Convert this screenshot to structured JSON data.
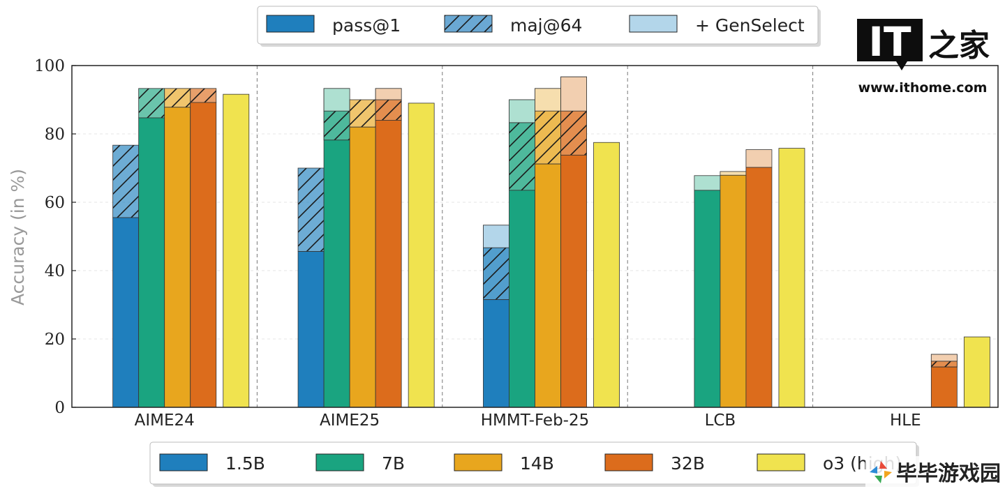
{
  "chart_data": {
    "type": "bar",
    "ylabel": "Accuracy (in %)",
    "ylim": [
      0,
      100
    ],
    "yticks": [
      0,
      20,
      40,
      60,
      80,
      100
    ],
    "grid": true,
    "categories": [
      "AIME24",
      "AIME25",
      "HMMT-Feb-25",
      "LCB",
      "HLE"
    ],
    "stack_legend": {
      "position": "top",
      "items": [
        {
          "label": "pass@1",
          "style": "solid"
        },
        {
          "label": "maj@64",
          "style": "hatched"
        },
        {
          "label": "+ GenSelect",
          "style": "light"
        }
      ]
    },
    "model_legend": {
      "position": "bottom",
      "items": [
        {
          "label": "1.5B",
          "color": "#1f7fbd"
        },
        {
          "label": "7B",
          "color": "#1aa480"
        },
        {
          "label": "14B",
          "color": "#e8a61e"
        },
        {
          "label": "32B",
          "color": "#dc6c1c"
        },
        {
          "label": "o3 (high)",
          "color": "#f0e34f"
        }
      ]
    },
    "series": [
      {
        "name": "1.5B",
        "color": "#1f7fbd",
        "light": "#b3d6ea",
        "pass1": [
          55.5,
          45.6,
          31.5,
          null,
          null
        ],
        "maj64": [
          76.7,
          70.0,
          46.7,
          null,
          null
        ],
        "genselect": [
          null,
          null,
          53.3,
          null,
          null
        ]
      },
      {
        "name": "7B",
        "color": "#1aa480",
        "light": "#aee0d1",
        "pass1": [
          84.7,
          78.2,
          63.5,
          63.5,
          null
        ],
        "maj64": [
          93.3,
          86.7,
          83.3,
          null,
          null
        ],
        "genselect": [
          null,
          93.3,
          90.0,
          67.8,
          null
        ]
      },
      {
        "name": "14B",
        "color": "#e8a61e",
        "light": "#f6deae",
        "pass1": [
          87.8,
          82.0,
          71.2,
          67.9,
          null
        ],
        "maj64": [
          93.3,
          90.0,
          86.7,
          null,
          null
        ],
        "genselect": [
          null,
          null,
          93.3,
          69.0,
          null
        ]
      },
      {
        "name": "32B",
        "color": "#dc6c1c",
        "light": "#f2cfb0",
        "pass1": [
          89.2,
          84.0,
          73.8,
          70.2,
          11.8
        ],
        "maj64": [
          93.3,
          90.0,
          86.7,
          null,
          13.5
        ],
        "genselect": [
          null,
          93.3,
          96.7,
          75.4,
          15.5
        ]
      },
      {
        "name": "o3 (high)",
        "color": "#f0e34f",
        "light": "#f0e34f",
        "pass1": [
          91.6,
          89.0,
          77.5,
          75.8,
          20.6
        ],
        "maj64": [
          null,
          null,
          null,
          null,
          null
        ],
        "genselect": [
          null,
          null,
          null,
          null,
          null
        ]
      }
    ]
  },
  "watermarks": {
    "ithome": {
      "letters": "IT",
      "chinese": "之家",
      "url": "www.ithome.com"
    },
    "game": {
      "text": "毕毕游戏园"
    }
  }
}
